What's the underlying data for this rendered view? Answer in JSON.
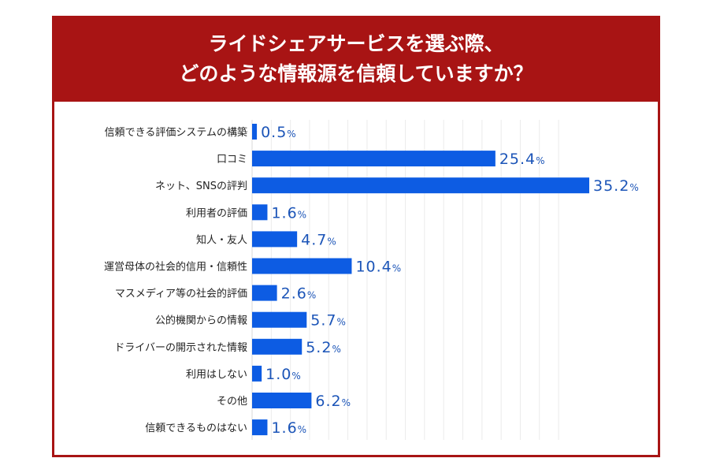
{
  "chart_data": {
    "type": "bar",
    "orientation": "horizontal",
    "title": [
      "ライドシェアサービスを選ぶ際、",
      "どのような情報源を信頼していますか？"
    ],
    "categories": [
      "信頼できる評価システムの構築",
      "口コミ",
      "ネット、SNSの評判",
      "利用者の評価",
      "知人・友人",
      "運営母体の社会的信用・信頼性",
      "マスメディア等の社会的評価",
      "公的機関からの情報",
      "ドライバーの開示された情報",
      "利用はしない",
      "その他",
      "信頼できるものはない"
    ],
    "values": [
      0.5,
      25.4,
      35.2,
      1.6,
      4.7,
      10.4,
      2.6,
      5.7,
      5.2,
      1.0,
      6.2,
      1.6
    ],
    "unit": "%",
    "xlim": [
      0,
      35.2
    ],
    "grid": true,
    "colors": {
      "bar": "#0d5ce3",
      "value_label": "#1c55b8",
      "frame": "#a81414",
      "grid": "#ebebeb"
    }
  }
}
